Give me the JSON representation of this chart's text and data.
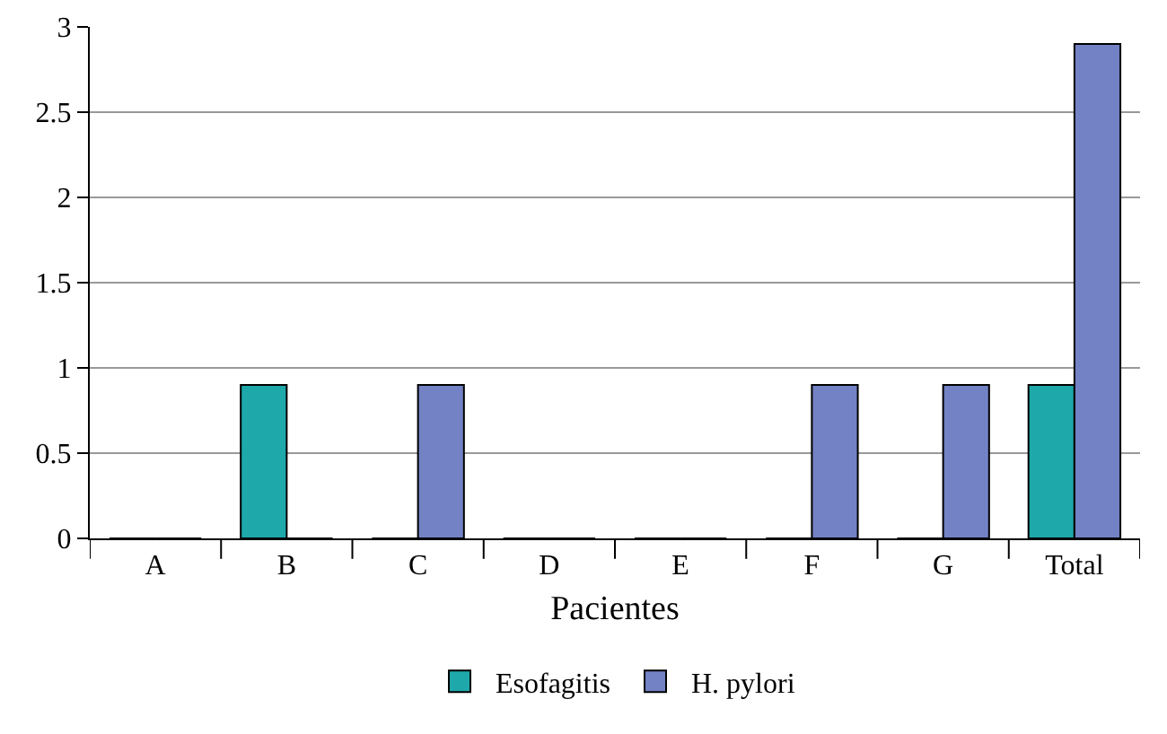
{
  "chart_data": {
    "type": "bar",
    "xlabel": "Pacientes",
    "categories": [
      "A",
      "B",
      "C",
      "D",
      "E",
      "F",
      "G",
      "Total"
    ],
    "series": [
      {
        "name": "Esofagitis",
        "color": "#1ea8aa",
        "values": [
          0,
          0.9,
          0,
          0,
          0,
          0,
          0,
          0.9
        ]
      },
      {
        "name": "H. pylori",
        "color": "#7382c4",
        "values": [
          0,
          0,
          0.9,
          0,
          0,
          0.9,
          0.9,
          2.9
        ]
      }
    ],
    "ylim": [
      0,
      3
    ],
    "yticks": [
      0,
      0.5,
      1,
      1.5,
      2,
      2.5,
      3
    ],
    "grid": "y",
    "legend": "bottom"
  }
}
